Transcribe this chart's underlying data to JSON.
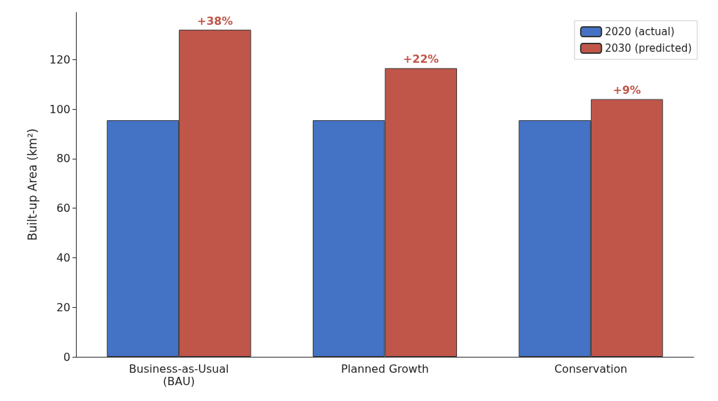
{
  "chart_data": {
    "type": "bar",
    "ylabel": "Built-up Area (km²)",
    "categories": [
      "Business-as-Usual\n(BAU)",
      "Planned Growth",
      "Conservation"
    ],
    "series": [
      {
        "name": "2020 (actual)",
        "color": "#4472c4",
        "values": [
          95.5,
          95.5,
          95.5
        ]
      },
      {
        "name": "2030 (predicted)",
        "color": "#c0564a",
        "values": [
          132,
          116.5,
          104
        ]
      }
    ],
    "annotations": [
      {
        "text": "+38%",
        "x": "Business-as-Usual\n(BAU)",
        "y": 132
      },
      {
        "text": "+22%",
        "x": "Planned Growth",
        "y": 116.5
      },
      {
        "text": "+9%",
        "x": "Conservation",
        "y": 104
      }
    ],
    "ylim": [
      0,
      139
    ],
    "yticks": [
      0,
      20,
      40,
      60,
      80,
      100,
      120
    ],
    "grid": false,
    "legend": "top right"
  }
}
